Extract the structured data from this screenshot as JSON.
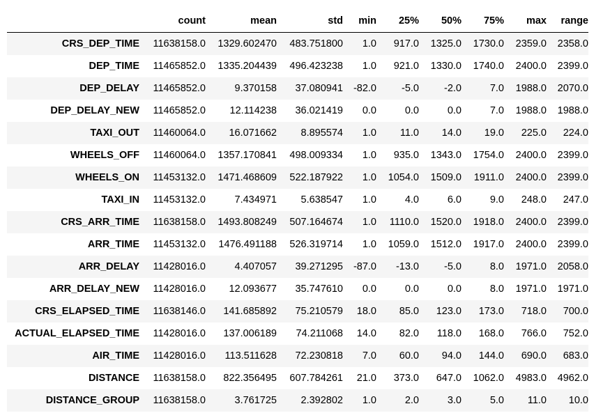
{
  "table": {
    "columns": [
      "",
      "count",
      "mean",
      "std",
      "min",
      "25%",
      "50%",
      "75%",
      "max",
      "range"
    ],
    "rows": [
      {
        "label": "CRS_DEP_TIME",
        "values": [
          "11638158.0",
          "1329.602470",
          "483.751800",
          "1.0",
          "917.0",
          "1325.0",
          "1730.0",
          "2359.0",
          "2358.0"
        ]
      },
      {
        "label": "DEP_TIME",
        "values": [
          "11465852.0",
          "1335.204439",
          "496.423238",
          "1.0",
          "921.0",
          "1330.0",
          "1740.0",
          "2400.0",
          "2399.0"
        ]
      },
      {
        "label": "DEP_DELAY",
        "values": [
          "11465852.0",
          "9.370158",
          "37.080941",
          "-82.0",
          "-5.0",
          "-2.0",
          "7.0",
          "1988.0",
          "2070.0"
        ]
      },
      {
        "label": "DEP_DELAY_NEW",
        "values": [
          "11465852.0",
          "12.114238",
          "36.021419",
          "0.0",
          "0.0",
          "0.0",
          "7.0",
          "1988.0",
          "1988.0"
        ]
      },
      {
        "label": "TAXI_OUT",
        "values": [
          "11460064.0",
          "16.071662",
          "8.895574",
          "1.0",
          "11.0",
          "14.0",
          "19.0",
          "225.0",
          "224.0"
        ]
      },
      {
        "label": "WHEELS_OFF",
        "values": [
          "11460064.0",
          "1357.170841",
          "498.009334",
          "1.0",
          "935.0",
          "1343.0",
          "1754.0",
          "2400.0",
          "2399.0"
        ]
      },
      {
        "label": "WHEELS_ON",
        "values": [
          "11453132.0",
          "1471.468609",
          "522.187922",
          "1.0",
          "1054.0",
          "1509.0",
          "1911.0",
          "2400.0",
          "2399.0"
        ]
      },
      {
        "label": "TAXI_IN",
        "values": [
          "11453132.0",
          "7.434971",
          "5.638547",
          "1.0",
          "4.0",
          "6.0",
          "9.0",
          "248.0",
          "247.0"
        ]
      },
      {
        "label": "CRS_ARR_TIME",
        "values": [
          "11638158.0",
          "1493.808249",
          "507.164674",
          "1.0",
          "1110.0",
          "1520.0",
          "1918.0",
          "2400.0",
          "2399.0"
        ]
      },
      {
        "label": "ARR_TIME",
        "values": [
          "11453132.0",
          "1476.491188",
          "526.319714",
          "1.0",
          "1059.0",
          "1512.0",
          "1917.0",
          "2400.0",
          "2399.0"
        ]
      },
      {
        "label": "ARR_DELAY",
        "values": [
          "11428016.0",
          "4.407057",
          "39.271295",
          "-87.0",
          "-13.0",
          "-5.0",
          "8.0",
          "1971.0",
          "2058.0"
        ]
      },
      {
        "label": "ARR_DELAY_NEW",
        "values": [
          "11428016.0",
          "12.093677",
          "35.747610",
          "0.0",
          "0.0",
          "0.0",
          "8.0",
          "1971.0",
          "1971.0"
        ]
      },
      {
        "label": "CRS_ELAPSED_TIME",
        "values": [
          "11638146.0",
          "141.685892",
          "75.210579",
          "18.0",
          "85.0",
          "123.0",
          "173.0",
          "718.0",
          "700.0"
        ]
      },
      {
        "label": "ACTUAL_ELAPSED_TIME",
        "values": [
          "11428016.0",
          "137.006189",
          "74.211068",
          "14.0",
          "82.0",
          "118.0",
          "168.0",
          "766.0",
          "752.0"
        ]
      },
      {
        "label": "AIR_TIME",
        "values": [
          "11428016.0",
          "113.511628",
          "72.230818",
          "7.0",
          "60.0",
          "94.0",
          "144.0",
          "690.0",
          "683.0"
        ]
      },
      {
        "label": "DISTANCE",
        "values": [
          "11638158.0",
          "822.356495",
          "607.784261",
          "21.0",
          "373.0",
          "647.0",
          "1062.0",
          "4983.0",
          "4962.0"
        ]
      },
      {
        "label": "DISTANCE_GROUP",
        "values": [
          "11638158.0",
          "3.761725",
          "2.392802",
          "1.0",
          "2.0",
          "3.0",
          "5.0",
          "11.0",
          "10.0"
        ]
      }
    ]
  }
}
